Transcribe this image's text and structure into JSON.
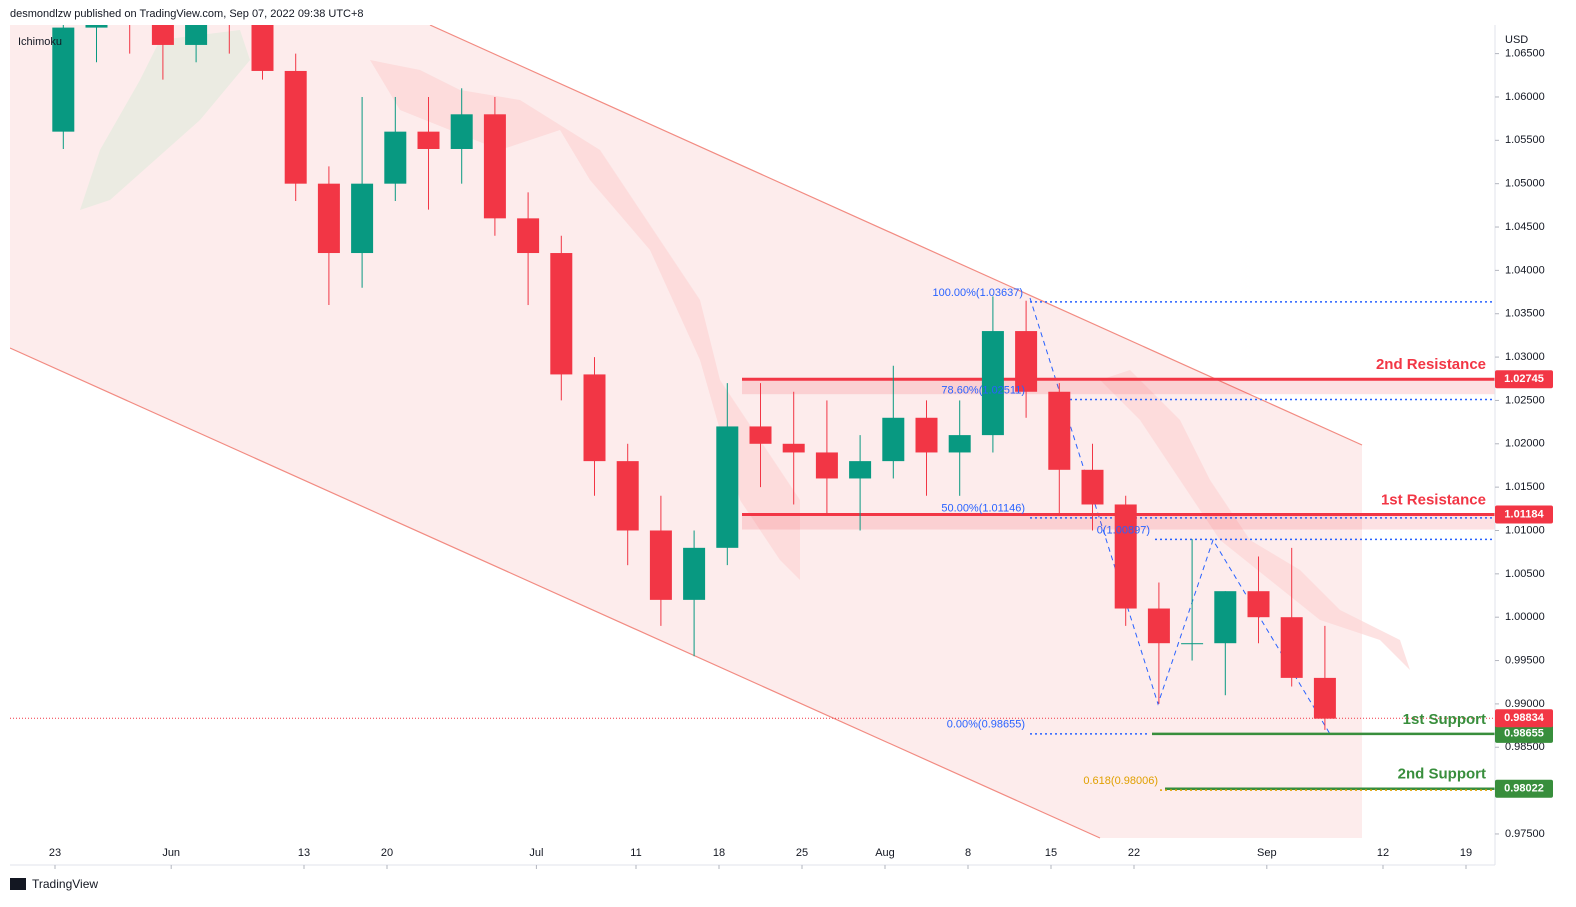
{
  "header": {
    "publisher": "desmondlzw published on TradingView.com, Sep 07, 2022 09:38 UTC+8",
    "indicator": "Ichimoku",
    "currency": "USD",
    "brand": "TradingView"
  },
  "chart_data": {
    "type": "candlestick",
    "x": [
      "2022-05-23",
      "2022-05-25",
      "2022-05-27",
      "2022-05-31",
      "2022-06-02",
      "2022-06-06",
      "2022-06-08",
      "2022-06-10",
      "2022-06-14",
      "2022-06-16",
      "2022-06-20",
      "2022-06-22",
      "2022-06-24",
      "2022-06-28",
      "2022-06-30",
      "2022-07-04",
      "2022-07-06",
      "2022-07-08",
      "2022-07-12",
      "2022-07-14",
      "2022-07-18",
      "2022-07-20",
      "2022-07-22",
      "2022-07-26",
      "2022-07-28",
      "2022-08-01",
      "2022-08-03",
      "2022-08-05",
      "2022-08-09",
      "2022-08-11",
      "2022-08-15",
      "2022-08-17",
      "2022-08-19",
      "2022-08-23",
      "2022-08-25",
      "2022-08-29",
      "2022-08-31",
      "2022-09-02",
      "2022-09-06"
    ],
    "open": [
      1.056,
      1.068,
      1.07,
      1.069,
      1.066,
      1.072,
      1.07,
      1.063,
      1.05,
      1.042,
      1.05,
      1.056,
      1.054,
      1.058,
      1.046,
      1.042,
      1.028,
      1.018,
      1.01,
      1.002,
      1.008,
      1.022,
      1.02,
      1.019,
      1.016,
      1.018,
      1.023,
      1.019,
      1.021,
      1.033,
      1.026,
      1.017,
      1.013,
      1.001,
      0.997,
      0.997,
      1.003,
      1.0,
      0.993
    ],
    "high": [
      1.07,
      1.072,
      1.076,
      1.072,
      1.075,
      1.074,
      1.077,
      1.065,
      1.052,
      1.06,
      1.06,
      1.06,
      1.061,
      1.06,
      1.049,
      1.044,
      1.03,
      1.02,
      1.014,
      1.01,
      1.027,
      1.027,
      1.026,
      1.025,
      1.021,
      1.029,
      1.025,
      1.025,
      1.037,
      1.0365,
      1.027,
      1.02,
      1.014,
      1.004,
      1.009,
      1.003,
      1.007,
      1.008,
      0.999
    ],
    "low": [
      1.054,
      1.064,
      1.065,
      1.062,
      1.064,
      1.065,
      1.062,
      1.048,
      1.036,
      1.038,
      1.048,
      1.047,
      1.05,
      1.044,
      1.036,
      1.025,
      1.014,
      1.006,
      0.999,
      0.9955,
      1.006,
      1.015,
      1.013,
      1.012,
      1.01,
      1.016,
      1.014,
      1.014,
      1.019,
      1.023,
      1.012,
      1.01,
      0.999,
      0.99,
      0.995,
      0.991,
      0.997,
      0.992,
      0.987
    ],
    "close": [
      1.068,
      1.07,
      1.069,
      1.066,
      1.072,
      1.07,
      1.063,
      1.05,
      1.042,
      1.05,
      1.056,
      1.054,
      1.058,
      1.046,
      1.042,
      1.028,
      1.018,
      1.01,
      1.002,
      1.008,
      1.022,
      1.02,
      1.019,
      1.016,
      1.018,
      1.023,
      1.019,
      1.021,
      1.033,
      1.026,
      1.017,
      1.013,
      1.001,
      0.997,
      0.997,
      1.003,
      1.0,
      0.993,
      0.9883
    ],
    "up_color": "#089981",
    "down_color": "#f23645",
    "ylim": [
      0.97142,
      1.0683
    ],
    "yticks": [
      {
        "value": 0.975,
        "label": "0.97500"
      },
      {
        "value": 0.98,
        "label": "0.98000"
      },
      {
        "value": 0.985,
        "label": "0.98500"
      },
      {
        "value": 0.99,
        "label": "0.99000"
      },
      {
        "value": 0.995,
        "label": "0.99500"
      },
      {
        "value": 1.0,
        "label": "1.00000"
      },
      {
        "value": 1.005,
        "label": "1.00500"
      },
      {
        "value": 1.01,
        "label": "1.01000"
      },
      {
        "value": 1.015,
        "label": "1.01500"
      },
      {
        "value": 1.02,
        "label": "1.02000"
      },
      {
        "value": 1.025,
        "label": "1.02500"
      },
      {
        "value": 1.03,
        "label": "1.03000"
      },
      {
        "value": 1.035,
        "label": "1.03500"
      },
      {
        "value": 1.04,
        "label": "1.04000"
      },
      {
        "value": 1.045,
        "label": "1.04500"
      },
      {
        "value": 1.05,
        "label": "1.05000"
      },
      {
        "value": 1.055,
        "label": "1.05500"
      },
      {
        "value": 1.06,
        "label": "1.06000"
      },
      {
        "value": 1.065,
        "label": "1.06500"
      }
    ],
    "xticks": [
      {
        "value": "2022-05-23",
        "label": "23"
      },
      {
        "value": "2022-06-01",
        "label": "Jun"
      },
      {
        "value": "2022-06-13",
        "label": "13"
      },
      {
        "value": "2022-06-20",
        "label": "20"
      },
      {
        "value": "2022-07-01",
        "label": "Jul"
      },
      {
        "value": "2022-07-11",
        "label": "11"
      },
      {
        "value": "2022-07-18",
        "label": "18"
      },
      {
        "value": "2022-07-25",
        "label": "25"
      },
      {
        "value": "2022-08-01",
        "label": "Aug"
      },
      {
        "value": "2022-08-08",
        "label": "8"
      },
      {
        "value": "2022-08-15",
        "label": "15"
      },
      {
        "value": "2022-08-22",
        "label": "22"
      },
      {
        "value": "2022-09-01",
        "label": "Sep"
      },
      {
        "value": "2022-09-12",
        "label": "12"
      },
      {
        "value": "2022-09-19",
        "label": "19"
      }
    ],
    "last_price": 0.98834,
    "levels": [
      {
        "name": "2nd Resistance",
        "value": 1.02745,
        "color": "#f23645"
      },
      {
        "name": "1st Resistance",
        "value": 1.01184,
        "color": "#f23645"
      },
      {
        "name": "1st Support",
        "value": 0.98655,
        "color": "#388e3c"
      },
      {
        "name": "2nd Support",
        "value": 0.98022,
        "color": "#388e3c"
      }
    ],
    "fib": [
      {
        "label": "100.00%(1.03637)",
        "value": 1.03637
      },
      {
        "label": "78.60%(1.02511)",
        "value": 1.02511
      },
      {
        "label": "50.00%(1.01146)",
        "value": 1.01146
      },
      {
        "label": "0(1.00897)",
        "value": 1.00897
      },
      {
        "label": "0.00%(0.98655)",
        "value": 0.98655
      },
      {
        "label": "0.618(0.98006)",
        "value": 0.98006
      }
    ]
  }
}
